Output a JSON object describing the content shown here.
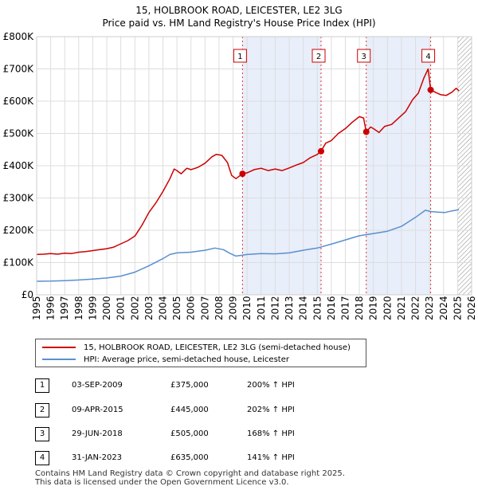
{
  "chart_data": {
    "type": "line",
    "title": "15, HOLBROOK ROAD, LEICESTER, LE2 3LG",
    "subtitle": "Price paid vs. HM Land Registry's House Price Index (HPI)",
    "xlabel": "",
    "ylabel": "",
    "xlim": [
      1995,
      2026
    ],
    "ylim": [
      0,
      800000
    ],
    "x_ticks": [
      "1995",
      "1996",
      "1997",
      "1998",
      "1999",
      "2000",
      "2001",
      "2002",
      "2003",
      "2004",
      "2005",
      "2006",
      "2007",
      "2008",
      "2009",
      "2010",
      "2011",
      "2012",
      "2013",
      "2014",
      "2015",
      "2016",
      "2017",
      "2018",
      "2019",
      "2020",
      "2021",
      "2022",
      "2023",
      "2024",
      "2025",
      "2026"
    ],
    "y_ticks": [
      {
        "value": 0,
        "label": "£0"
      },
      {
        "value": 100000,
        "label": "£100K"
      },
      {
        "value": 200000,
        "label": "£200K"
      },
      {
        "value": 300000,
        "label": "£300K"
      },
      {
        "value": 400000,
        "label": "£400K"
      },
      {
        "value": 500000,
        "label": "£500K"
      },
      {
        "value": 600000,
        "label": "£600K"
      },
      {
        "value": 700000,
        "label": "£700K"
      },
      {
        "value": 800000,
        "label": "£800K"
      }
    ],
    "series": [
      {
        "name": "15, HOLBROOK ROAD, LEICESTER, LE2 3LG (semi-detached house)",
        "color": "#cc0000",
        "points": [
          [
            1995.0,
            125000
          ],
          [
            1995.5,
            126000
          ],
          [
            1996.0,
            128000
          ],
          [
            1996.5,
            126000
          ],
          [
            1997.0,
            129000
          ],
          [
            1997.5,
            128000
          ],
          [
            1998.0,
            132000
          ],
          [
            1998.5,
            134000
          ],
          [
            1999.0,
            137000
          ],
          [
            1999.5,
            140000
          ],
          [
            2000.0,
            143000
          ],
          [
            2000.5,
            148000
          ],
          [
            2001.0,
            158000
          ],
          [
            2001.5,
            168000
          ],
          [
            2002.0,
            182000
          ],
          [
            2002.5,
            215000
          ],
          [
            2003.0,
            255000
          ],
          [
            2003.5,
            285000
          ],
          [
            2004.0,
            320000
          ],
          [
            2004.5,
            360000
          ],
          [
            2004.8,
            390000
          ],
          [
            2005.0,
            385000
          ],
          [
            2005.3,
            375000
          ],
          [
            2005.7,
            392000
          ],
          [
            2006.0,
            388000
          ],
          [
            2006.5,
            395000
          ],
          [
            2007.0,
            408000
          ],
          [
            2007.5,
            428000
          ],
          [
            2007.8,
            435000
          ],
          [
            2008.2,
            432000
          ],
          [
            2008.6,
            410000
          ],
          [
            2008.9,
            370000
          ],
          [
            2009.2,
            360000
          ],
          [
            2009.67,
            375000
          ],
          [
            2010.0,
            378000
          ],
          [
            2010.5,
            388000
          ],
          [
            2011.0,
            392000
          ],
          [
            2011.5,
            385000
          ],
          [
            2012.0,
            390000
          ],
          [
            2012.5,
            385000
          ],
          [
            2013.0,
            393000
          ],
          [
            2013.5,
            402000
          ],
          [
            2014.0,
            410000
          ],
          [
            2014.5,
            425000
          ],
          [
            2015.0,
            435000
          ],
          [
            2015.27,
            445000
          ],
          [
            2015.6,
            470000
          ],
          [
            2016.0,
            478000
          ],
          [
            2016.5,
            500000
          ],
          [
            2017.0,
            515000
          ],
          [
            2017.5,
            535000
          ],
          [
            2018.0,
            552000
          ],
          [
            2018.3,
            548000
          ],
          [
            2018.49,
            505000
          ],
          [
            2018.8,
            520000
          ],
          [
            2019.0,
            515000
          ],
          [
            2019.4,
            503000
          ],
          [
            2019.8,
            522000
          ],
          [
            2020.3,
            528000
          ],
          [
            2020.8,
            548000
          ],
          [
            2021.3,
            568000
          ],
          [
            2021.8,
            605000
          ],
          [
            2022.2,
            625000
          ],
          [
            2022.6,
            672000
          ],
          [
            2022.9,
            700000
          ],
          [
            2023.08,
            635000
          ],
          [
            2023.4,
            628000
          ],
          [
            2023.8,
            620000
          ],
          [
            2024.2,
            618000
          ],
          [
            2024.6,
            628000
          ],
          [
            2024.9,
            640000
          ],
          [
            2025.1,
            632000
          ]
        ]
      },
      {
        "name": "HPI: Average price, semi-detached house, Leicester",
        "color": "#5a8fcf",
        "points": [
          [
            1995.0,
            42000
          ],
          [
            1996.0,
            42500
          ],
          [
            1997.0,
            44000
          ],
          [
            1998.0,
            46000
          ],
          [
            1999.0,
            49000
          ],
          [
            2000.0,
            52000
          ],
          [
            2001.0,
            58000
          ],
          [
            2002.0,
            70000
          ],
          [
            2003.0,
            90000
          ],
          [
            2004.0,
            112000
          ],
          [
            2004.5,
            125000
          ],
          [
            2005.0,
            130000
          ],
          [
            2006.0,
            132000
          ],
          [
            2007.0,
            138000
          ],
          [
            2007.7,
            145000
          ],
          [
            2008.3,
            140000
          ],
          [
            2008.8,
            128000
          ],
          [
            2009.2,
            120000
          ],
          [
            2010.0,
            125000
          ],
          [
            2011.0,
            128000
          ],
          [
            2012.0,
            127000
          ],
          [
            2013.0,
            130000
          ],
          [
            2014.0,
            138000
          ],
          [
            2015.0,
            145000
          ],
          [
            2016.0,
            157000
          ],
          [
            2017.0,
            170000
          ],
          [
            2018.0,
            183000
          ],
          [
            2019.0,
            190000
          ],
          [
            2020.0,
            197000
          ],
          [
            2021.0,
            212000
          ],
          [
            2022.0,
            240000
          ],
          [
            2022.7,
            262000
          ],
          [
            2023.1,
            258000
          ],
          [
            2023.6,
            256000
          ],
          [
            2024.1,
            255000
          ],
          [
            2024.6,
            260000
          ],
          [
            2025.1,
            264000
          ]
        ]
      }
    ],
    "transactions": [
      {
        "num": "1",
        "x": 2009.67,
        "price_value": 375000,
        "date": "03-SEP-2009",
        "price": "£375,000",
        "hpi": "200% ↑ HPI"
      },
      {
        "num": "2",
        "x": 2015.27,
        "price_value": 445000,
        "date": "09-APR-2015",
        "price": "£445,000",
        "hpi": "202% ↑ HPI"
      },
      {
        "num": "3",
        "x": 2018.49,
        "price_value": 505000,
        "date": "29-JUN-2018",
        "price": "£505,000",
        "hpi": "168% ↑ HPI"
      },
      {
        "num": "4",
        "x": 2023.08,
        "price_value": 635000,
        "date": "31-JAN-2023",
        "price": "£635,000",
        "hpi": "141% ↑ HPI"
      }
    ],
    "shaded_ranges": [
      [
        2009.67,
        2015.27
      ],
      [
        2018.49,
        2023.08
      ]
    ],
    "future_hatch_from": 2025.0,
    "colors": {
      "band": "#e8eefa",
      "marker_line": "#dd3333",
      "grid": "#dddddd"
    }
  },
  "legend": {
    "items": [
      {
        "label": "15, HOLBROOK ROAD, LEICESTER, LE2 3LG (semi-detached house)",
        "color": "#cc0000"
      },
      {
        "label": "HPI: Average price, semi-detached house, Leicester",
        "color": "#5a8fcf"
      }
    ]
  },
  "footer": {
    "line1": "Contains HM Land Registry data © Crown copyright and database right 2025.",
    "line2": "This data is licensed under the Open Government Licence v3.0."
  }
}
